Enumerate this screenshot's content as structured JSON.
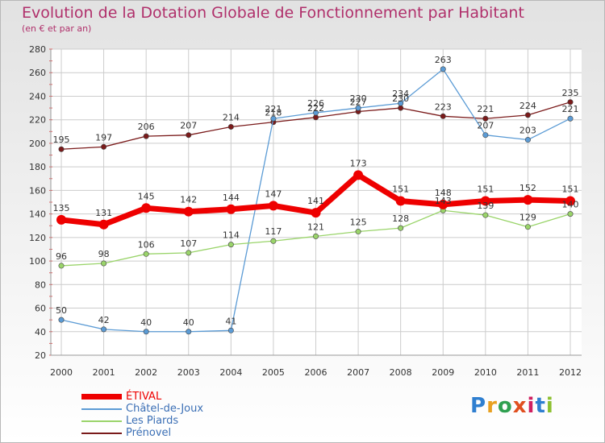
{
  "header": {
    "title": "Evolution de la Dotation Globale de Fonctionnement par Habitant",
    "subtitle": "(en € et par an)"
  },
  "chart_data": {
    "type": "line",
    "title": "Evolution de la Dotation Globale de Fonctionnement par Habitant",
    "subtitle": "(en € et par an)",
    "xlabel": "",
    "ylabel": "",
    "ylim": [
      20,
      280
    ],
    "yticks": [
      20,
      40,
      60,
      80,
      100,
      120,
      140,
      160,
      180,
      200,
      220,
      240,
      260,
      280
    ],
    "grid": true,
    "legend_position": "bottom-left",
    "x": [
      "2000",
      "2001",
      "2002",
      "2003",
      "2004",
      "2005",
      "2006",
      "2007",
      "2008",
      "2009",
      "2010",
      "2011",
      "2012"
    ],
    "series": [
      {
        "name": "ÉTIVAL",
        "color": "#ee0000",
        "style": "bold",
        "values": [
          135,
          131,
          145,
          142,
          144,
          147,
          141,
          173,
          151,
          148,
          151,
          152,
          151
        ]
      },
      {
        "name": "Châtel-de-Joux",
        "color": "#5b9bd5",
        "style": "thin",
        "values": [
          50,
          42,
          40,
          40,
          41,
          221,
          226,
          230,
          234,
          263,
          207,
          203,
          221
        ]
      },
      {
        "name": "Les Piards",
        "color": "#9ad46a",
        "style": "thin",
        "values": [
          96,
          98,
          106,
          107,
          114,
          117,
          121,
          125,
          128,
          143,
          139,
          129,
          140
        ]
      },
      {
        "name": "Prénovel",
        "color": "#7a1a1a",
        "style": "thin",
        "values": [
          195,
          197,
          206,
          207,
          214,
          218,
          222,
          227,
          230,
          223,
          221,
          224,
          235
        ]
      }
    ]
  },
  "logo": {
    "text": "Proxiti"
  }
}
